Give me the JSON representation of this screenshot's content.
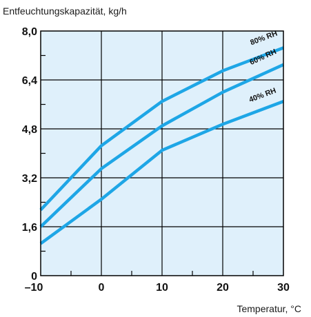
{
  "chart_data": {
    "type": "line",
    "title": "",
    "ylabel": "Entfeuchtungskapazität, kg/h",
    "xlabel": "Temperatur, °C",
    "xlim": [
      -10,
      30
    ],
    "ylim": [
      0,
      8.0
    ],
    "x_ticks": [
      "–10",
      "0",
      "10",
      "20",
      "30"
    ],
    "x_tick_values": [
      -10,
      0,
      10,
      20,
      30
    ],
    "y_ticks": [
      "0",
      "1,6",
      "3,2",
      "4,8",
      "6,4",
      "8,0"
    ],
    "y_tick_values": [
      0,
      1.6,
      3.2,
      4.8,
      6.4,
      8.0
    ],
    "grid": true,
    "colors": {
      "line": "#1ea6e6",
      "plot_bg": "#dff0fb",
      "grid": "#000000"
    },
    "series": [
      {
        "name": "80% RH",
        "x": [
          -10,
          0,
          10,
          20,
          30
        ],
        "y": [
          2.15,
          4.25,
          5.7,
          6.7,
          7.45
        ]
      },
      {
        "name": "60% RH",
        "x": [
          -10,
          0,
          10,
          20,
          30
        ],
        "y": [
          1.6,
          3.5,
          4.9,
          6.0,
          6.9
        ]
      },
      {
        "name": "40% RH",
        "x": [
          -10,
          0,
          10,
          20,
          30
        ],
        "y": [
          1.05,
          2.5,
          4.1,
          4.95,
          5.7
        ]
      }
    ]
  }
}
